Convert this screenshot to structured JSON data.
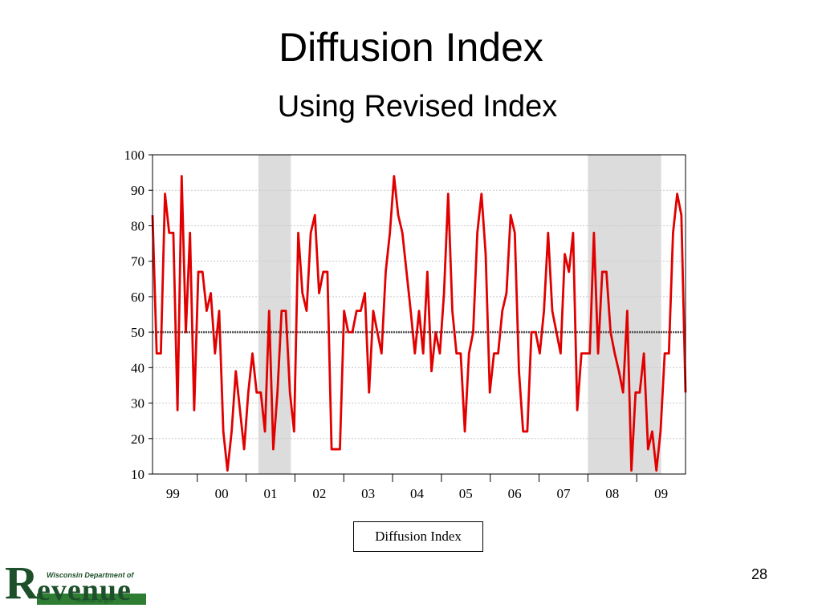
{
  "slide": {
    "title": "Diffusion Index",
    "subtitle": "Using Revised Index",
    "page_number": "28"
  },
  "logo": {
    "top_text": "Wisconsin Department of",
    "initial": "R",
    "word": "evenue",
    "url": "revenue.wi.gov"
  },
  "colors": {
    "series": "#e00000",
    "recession_shading": "#dcdcdc",
    "reference_line": "#555555",
    "logo_green": "#1d4f2a"
  },
  "chart_data": {
    "type": "line",
    "title": "",
    "xlabel": "",
    "ylabel": "",
    "ylim": [
      10,
      100
    ],
    "yticks": [
      10,
      20,
      30,
      40,
      50,
      60,
      70,
      80,
      90,
      100
    ],
    "xlim": [
      1998.583,
      2009.5
    ],
    "year_labels": [
      {
        "label": "99",
        "x": 1999.0
      },
      {
        "label": "00",
        "x": 2000.0
      },
      {
        "label": "01",
        "x": 2001.0
      },
      {
        "label": "02",
        "x": 2002.0
      },
      {
        "label": "03",
        "x": 2003.0
      },
      {
        "label": "04",
        "x": 2004.0
      },
      {
        "label": "05",
        "x": 2005.0
      },
      {
        "label": "06",
        "x": 2006.0
      },
      {
        "label": "07",
        "x": 2007.0
      },
      {
        "label": "08",
        "x": 2008.0
      },
      {
        "label": "09",
        "x": 2009.0
      }
    ],
    "recession_periods": [
      {
        "start": 2000.75,
        "end": 2001.417
      },
      {
        "start": 2007.5,
        "end": 2009.0
      }
    ],
    "reference_line": 50,
    "legend": [
      "Diffusion Index"
    ],
    "legend_position": "bottom-center",
    "grid": true,
    "series": [
      {
        "name": "Diffusion Index",
        "values": [
          83,
          44,
          44,
          89,
          78,
          78,
          28,
          94,
          50,
          78,
          28,
          67,
          67,
          56,
          61,
          44,
          56,
          22,
          11,
          22,
          39,
          28,
          17,
          33,
          44,
          33,
          33,
          22,
          56,
          17,
          33,
          56,
          56,
          33,
          22,
          78,
          61,
          56,
          78,
          83,
          61,
          67,
          67,
          17,
          17,
          17,
          56,
          50,
          50,
          56,
          56,
          61,
          33,
          56,
          50,
          44,
          67,
          78,
          94,
          83,
          78,
          67,
          56,
          44,
          56,
          44,
          67,
          39,
          50,
          44,
          61,
          89,
          56,
          44,
          44,
          22,
          44,
          50,
          78,
          89,
          72,
          33,
          44,
          44,
          56,
          61,
          83,
          78,
          39,
          22,
          22,
          50,
          50,
          44,
          56,
          78,
          56,
          50,
          44,
          72,
          67,
          78,
          28,
          44,
          44,
          44,
          78,
          44,
          67,
          67,
          50,
          44,
          39,
          33,
          56,
          11,
          33,
          33,
          44,
          17,
          22,
          11,
          22,
          44,
          44,
          78,
          89,
          83,
          33
        ]
      }
    ]
  }
}
